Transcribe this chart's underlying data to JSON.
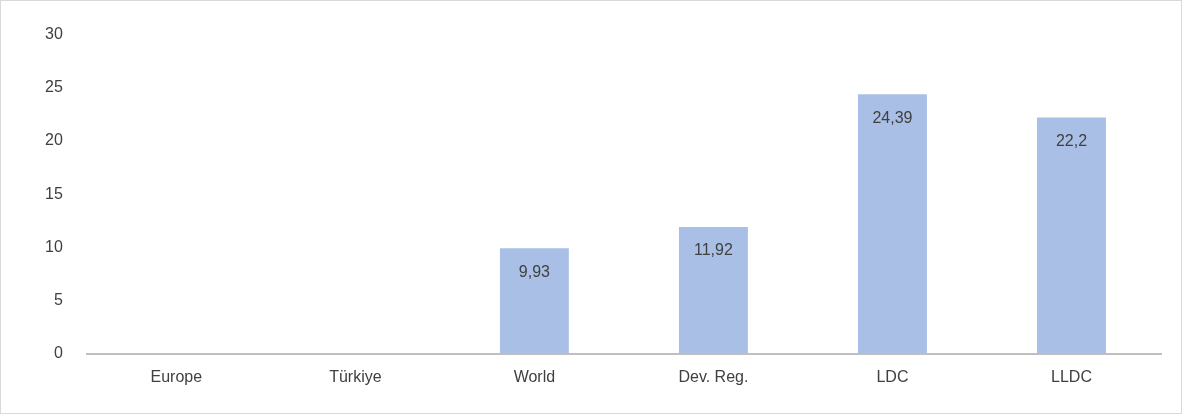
{
  "chart_data": {
    "type": "bar",
    "categories": [
      "Europe",
      "Türkiye",
      "World",
      "Dev. Reg.",
      "LDC",
      "LLDC"
    ],
    "values": [
      null,
      null,
      9.93,
      11.92,
      24.39,
      22.2
    ],
    "value_labels": [
      null,
      null,
      "9,93",
      "11,92",
      "24,39",
      "22,2"
    ],
    "color": "#a9bfe6",
    "ylim": [
      0,
      30
    ],
    "yticks": [
      0,
      5,
      10,
      15,
      20,
      25,
      30
    ],
    "grid": false,
    "legend": false
  }
}
